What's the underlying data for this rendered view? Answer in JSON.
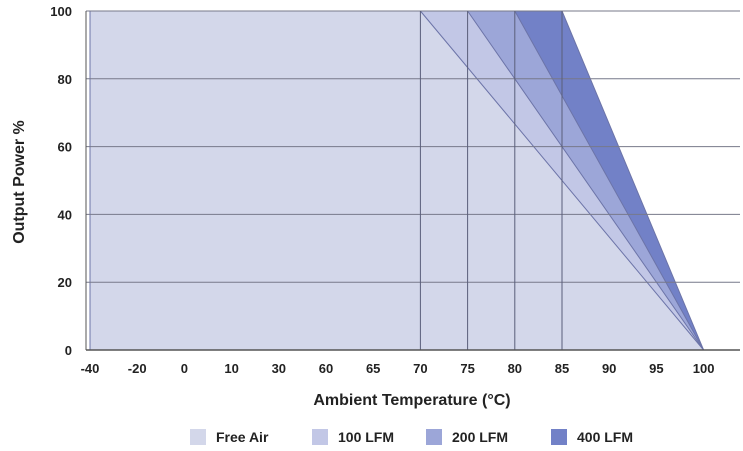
{
  "chart_data": {
    "type": "area",
    "title": "",
    "xlabel": "Ambient Temperature (°C)",
    "ylabel": "Output Power %",
    "x_tick_labels": [
      "-40",
      "-20",
      "0",
      "10",
      "30",
      "60",
      "65",
      "70",
      "75",
      "80",
      "85",
      "90",
      "95",
      "100"
    ],
    "y_ticks": [
      0,
      20,
      40,
      60,
      80,
      100
    ],
    "ylim": [
      0,
      100
    ],
    "grid": true,
    "legend_position": "bottom",
    "series": [
      {
        "name": "Free Air",
        "color": "#d3d7ea",
        "x": [
          "-40",
          "70",
          "100"
        ],
        "values": [
          100,
          100,
          0
        ]
      },
      {
        "name": "100 LFM",
        "color": "#c2c7e6",
        "x": [
          "-40",
          "75",
          "100"
        ],
        "values": [
          100,
          100,
          0
        ]
      },
      {
        "name": "200 LFM",
        "color": "#9ca6d8",
        "x": [
          "-40",
          "80",
          "100"
        ],
        "values": [
          100,
          100,
          0
        ]
      },
      {
        "name": "400 LFM",
        "color": "#7281c7",
        "x": [
          "-40",
          "85",
          "100"
        ],
        "values": [
          100,
          100,
          0
        ]
      }
    ]
  }
}
